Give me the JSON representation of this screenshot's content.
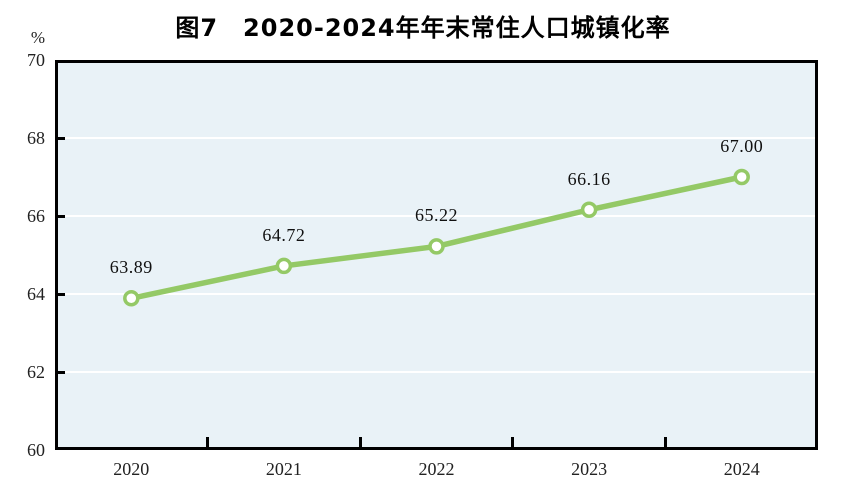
{
  "chart_data": {
    "type": "line",
    "title": "图7　2020-2024年年末常住人口城镇化率",
    "y_unit": "%",
    "categories": [
      "2020",
      "2021",
      "2022",
      "2023",
      "2024"
    ],
    "values": [
      63.89,
      64.72,
      65.22,
      66.16,
      67.0
    ],
    "data_labels": [
      "63.89",
      "64.72",
      "65.22",
      "66.16",
      "67.00"
    ],
    "ylim": [
      60,
      70
    ],
    "yticks": [
      60,
      62,
      64,
      66,
      68,
      70
    ],
    "grid": true,
    "legend": "none",
    "colors": {
      "line": "#94c966",
      "marker_fill": "#ffffff",
      "marker_stroke": "#94c966",
      "plot_background": "#e9f2f7",
      "gridline": "#ffffff",
      "axis_frame": "#000000",
      "text": "#222222"
    }
  }
}
